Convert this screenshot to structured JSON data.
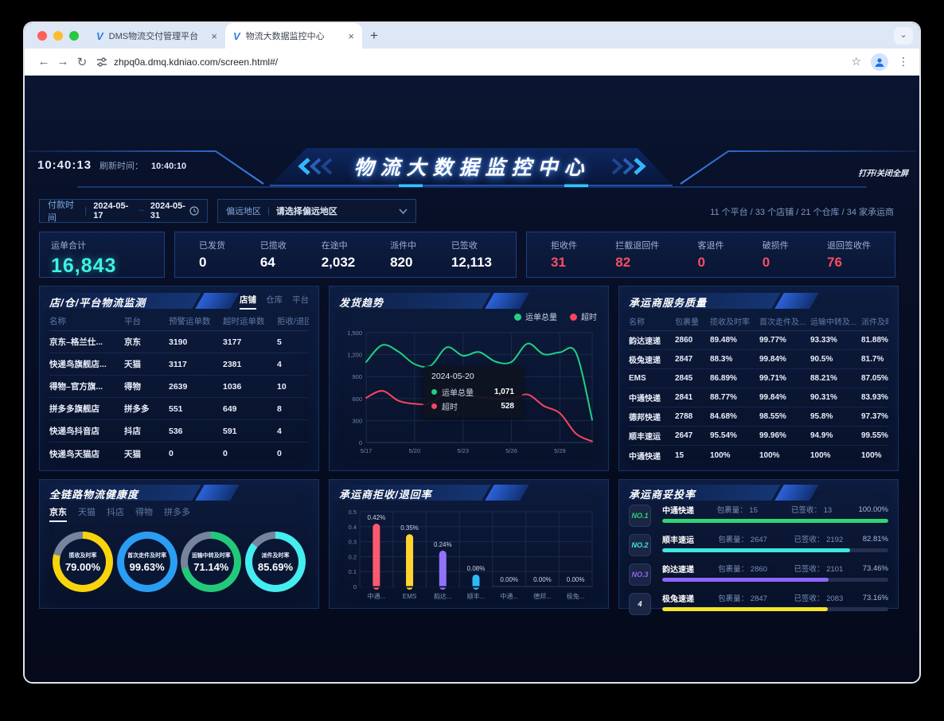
{
  "browser": {
    "tab1": "DMS物流交付管理平台",
    "tab2": "物流大数据监控中心",
    "close_glyph": "×",
    "new_tab": "+",
    "url": "zhpq0a.dmq.kdniao.com/screen.html#/",
    "accent": "#2b7de9"
  },
  "header": {
    "clock": "10:40:13",
    "refresh_label": "刷新时间：",
    "refresh_value": "10:40:10",
    "title": "物流大数据监控中心",
    "fullscreen_label": "打开/关闭全屏"
  },
  "filters": {
    "pay_label": "付款时间",
    "date_start": "2024-05-17",
    "date_sep": "~",
    "date_end": "2024-05-31",
    "region_label": "偏远地区",
    "region_placeholder": "请选择偏远地区",
    "summary": "11 个平台 / 33 个店铺 / 21 个仓库 / 34 家承运商"
  },
  "stats": {
    "total_label": "运单合计",
    "total_value": "16,843",
    "total_color": "#3df2e5",
    "issue_color": "#fb4d62",
    "progress": [
      {
        "label": "已发货",
        "value": "0"
      },
      {
        "label": "已揽收",
        "value": "64"
      },
      {
        "label": "在途中",
        "value": "2,032"
      },
      {
        "label": "派件中",
        "value": "820"
      },
      {
        "label": "已签收",
        "value": "12,113"
      }
    ],
    "issues": [
      {
        "label": "拒收件",
        "value": "31"
      },
      {
        "label": "拦截退回件",
        "value": "82"
      },
      {
        "label": "客退件",
        "value": "0"
      },
      {
        "label": "破损件",
        "value": "0"
      },
      {
        "label": "退回签收件",
        "value": "76"
      }
    ]
  },
  "store_panel": {
    "title": "店/仓/平台物流监测",
    "tabs": [
      {
        "label": "店铺",
        "active": true
      },
      {
        "label": "仓库",
        "active": false
      },
      {
        "label": "平台",
        "active": false
      }
    ],
    "columns": [
      "名称",
      "平台",
      "预警运单数",
      "超时运单数",
      "拒收/退回"
    ],
    "rows": [
      [
        "京东–格兰仕...",
        "京东",
        "3190",
        "3177",
        "5"
      ],
      [
        "快递鸟旗舰店...",
        "天猫",
        "3117",
        "2381",
        "4"
      ],
      [
        "得物–官方旗...",
        "得物",
        "2639",
        "1036",
        "10"
      ],
      [
        "拼多多旗舰店",
        "拼多多",
        "551",
        "649",
        "8"
      ],
      [
        "快递鸟抖音店",
        "抖店",
        "536",
        "591",
        "4"
      ],
      [
        "快递鸟天猫店",
        "天猫",
        "0",
        "0",
        "0"
      ]
    ]
  },
  "trend_panel": {
    "title": "发货趋势",
    "tooltip": {
      "date": "2024-05-20",
      "rows": [
        {
          "label": "运单总量",
          "value": "1,071",
          "color": "#20d184"
        },
        {
          "label": "超时",
          "value": "528",
          "color": "#f9455f"
        }
      ]
    }
  },
  "quality_panel": {
    "title": "承运商服务质量",
    "columns": [
      "名称",
      "包裹量",
      "揽收及时率",
      "首次走件及...",
      "运输中转及...",
      "派件及时率"
    ],
    "rows": [
      [
        "韵达速递",
        "2860",
        "89.48%",
        "99.77%",
        "93.33%",
        "81.88%"
      ],
      [
        "极兔速递",
        "2847",
        "88.3%",
        "99.84%",
        "90.5%",
        "81.7%"
      ],
      [
        "EMS",
        "2845",
        "86.89%",
        "99.71%",
        "88.21%",
        "87.05%"
      ],
      [
        "中通快递",
        "2841",
        "88.77%",
        "99.84%",
        "90.31%",
        "83.93%"
      ],
      [
        "德邦快递",
        "2788",
        "84.68%",
        "98.55%",
        "95.8%",
        "97.37%"
      ],
      [
        "顺丰速运",
        "2647",
        "95.54%",
        "99.96%",
        "94.9%",
        "99.55%"
      ],
      [
        "中通快递",
        "15",
        "100%",
        "100%",
        "100%",
        "100%"
      ]
    ]
  },
  "health_panel": {
    "title": "全链路物流健康度",
    "tabs": [
      {
        "label": "京东",
        "active": true
      },
      {
        "label": "天猫",
        "active": false
      },
      {
        "label": "抖店",
        "active": false
      },
      {
        "label": "得物",
        "active": false
      },
      {
        "label": "拼多多",
        "active": false
      }
    ],
    "rest_color": "#78839c",
    "donuts": [
      {
        "label": "揽收及时率",
        "value": "79.00%",
        "pct": 79.0,
        "color": "#f8d40d"
      },
      {
        "label": "首次走件及时率",
        "value": "99.63%",
        "pct": 99.63,
        "color": "#2a9df4"
      },
      {
        "label": "运输中转及时率",
        "value": "71.14%",
        "pct": 71.14,
        "color": "#22c97a"
      },
      {
        "label": "派件及时率",
        "value": "85.69%",
        "pct": 85.69,
        "color": "#45ecf0"
      }
    ]
  },
  "reject_panel": {
    "title": "承运商拒收/退回率"
  },
  "rank_panel": {
    "title": "承运商妥投率",
    "pkg_label": "包裹量：",
    "signed_label": "已签收：",
    "items": [
      {
        "rank": "NO.1",
        "rank_color": "#2ed573",
        "name": "中通快递",
        "pkg": "15",
        "signed": "13",
        "pct_label": "100.00%",
        "pct": 100,
        "bar_color": "#2ed573"
      },
      {
        "rank": "NO.2",
        "rank_color": "#3ae8e0",
        "name": "顺丰速运",
        "pkg": "2647",
        "signed": "2192",
        "pct_label": "82.81%",
        "pct": 83,
        "bar_color": "#3ae8e0"
      },
      {
        "rank": "NO.3",
        "rank_color": "#8d67fa",
        "name": "韵达速递",
        "pkg": "2860",
        "signed": "2101",
        "pct_label": "73.46%",
        "pct": 73.5,
        "bar_color": "#8d67fa"
      },
      {
        "rank": "4",
        "rank_color": "#ffffff",
        "name": "极兔速递",
        "pkg": "2847",
        "signed": "2083",
        "pct_label": "73.16%",
        "pct": 73.2,
        "bar_color": "#f4e52b"
      }
    ]
  },
  "chart_data": [
    {
      "id": "ship_trend",
      "type": "line",
      "title": "发货趋势",
      "x": [
        "5/17",
        "5/18",
        "5/19",
        "5/20",
        "5/21",
        "5/22",
        "5/23",
        "5/24",
        "5/25",
        "5/26",
        "5/27",
        "5/28",
        "5/29",
        "5/30",
        "5/31"
      ],
      "x_tick_indices": [
        0,
        3,
        6,
        9,
        12
      ],
      "x_tick_labels": [
        "5/17",
        "5/20",
        "5/23",
        "5/26",
        "5/29"
      ],
      "ylim": [
        0,
        1500
      ],
      "y_ticks": [
        0,
        300,
        600,
        900,
        1200,
        1500
      ],
      "y_tick_labels": [
        "0",
        "300",
        "600",
        "900",
        "1,200",
        "1,500"
      ],
      "grid": true,
      "legend_position": "top-right",
      "series": [
        {
          "name": "运单总量",
          "color": "#20d184",
          "values": [
            1100,
            1330,
            1240,
            1071,
            1050,
            1300,
            1185,
            1235,
            1105,
            1100,
            1350,
            1205,
            1230,
            1225,
            310
          ]
        },
        {
          "name": "超时",
          "color": "#f9455f",
          "values": [
            610,
            705,
            570,
            528,
            535,
            680,
            640,
            620,
            600,
            590,
            655,
            500,
            400,
            120,
            15
          ]
        }
      ]
    },
    {
      "id": "reject_rate",
      "type": "bar",
      "title": "承运商拒收/退回率",
      "categories": [
        "中通...",
        "EMS",
        "韵达...",
        "顺丰...",
        "中通...",
        "德邦...",
        "极兔..."
      ],
      "values": [
        0.42,
        0.35,
        0.24,
        0.08,
        0,
        0,
        0
      ],
      "labels": [
        "0.42%",
        "0.35%",
        "0.24%",
        "0.08%",
        "0.00%",
        "0.00%",
        "0.00%"
      ],
      "colors": [
        "#fb5a6e",
        "#ffd52e",
        "#9271fb",
        "#2cb9f5",
        "#2cb9f5",
        "#2cb9f5",
        "#2cb9f5"
      ],
      "ylim": [
        0,
        0.5
      ],
      "y_ticks": [
        0,
        0.1,
        0.2,
        0.3,
        0.4,
        0.5
      ],
      "y_tick_labels": [
        "0",
        "0.1",
        "0.2",
        "0.3",
        "0.4",
        "0.5"
      ],
      "grid": true
    },
    {
      "id": "health_donuts",
      "type": "pie",
      "title": "全链路物流健康度",
      "items": [
        {
          "label": "揽收及时率",
          "value": 79.0
        },
        {
          "label": "首次走件及时率",
          "value": 99.63
        },
        {
          "label": "运输中转及时率",
          "value": 71.14
        },
        {
          "label": "派件及时率",
          "value": 85.69
        }
      ]
    },
    {
      "id": "delivery_rank",
      "type": "bar",
      "title": "承运商妥投率",
      "categories": [
        "中通快递",
        "顺丰速运",
        "韵达速递",
        "极兔速递"
      ],
      "values": [
        100.0,
        82.81,
        73.46,
        73.16
      ],
      "extra": {
        "包裹量": [
          15,
          2647,
          2860,
          2847
        ],
        "已签收": [
          13,
          2192,
          2101,
          2083
        ]
      }
    }
  ]
}
